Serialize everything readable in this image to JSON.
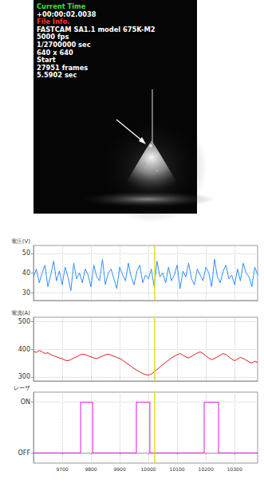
{
  "photo": {
    "overlay": [
      {
        "text": "Current Time",
        "color": "#3fe03f"
      },
      {
        "text": "+00:00:02.0038",
        "color": "#ffffff"
      },
      {
        "text": "File Info.",
        "color": "#ff3030"
      },
      {
        "text": "FASTCAM SA1.1 model 675K-M2",
        "color": "#ffffff"
      },
      {
        "text": "5000 fps",
        "color": "#ffffff"
      },
      {
        "text": "1/2700000 sec",
        "color": "#ffffff"
      },
      {
        "text": "640 x 640",
        "color": "#ffffff"
      },
      {
        "text": "Start",
        "color": "#ffffff"
      },
      {
        "text": "27951 frames",
        "color": "#ffffff"
      },
      {
        "text": "5.5902 sec",
        "color": "#ffffff"
      }
    ]
  },
  "chart_data": [
    {
      "type": "line",
      "y_label": "電圧(V)",
      "xlim": [
        9600,
        10380
      ],
      "xticks": [
        9700,
        9800,
        9900,
        10000,
        10100,
        10200,
        10300
      ],
      "ylim": [
        26,
        54
      ],
      "yticks": [
        30,
        40,
        50
      ],
      "grid": true,
      "cursor_x": 10020,
      "x": [
        9600,
        9610,
        9620,
        9630,
        9640,
        9650,
        9660,
        9670,
        9680,
        9690,
        9700,
        9710,
        9720,
        9730,
        9740,
        9750,
        9760,
        9770,
        9780,
        9790,
        9800,
        9810,
        9820,
        9830,
        9840,
        9850,
        9860,
        9870,
        9880,
        9890,
        9900,
        9910,
        9920,
        9930,
        9940,
        9950,
        9960,
        9970,
        9980,
        9990,
        10000,
        10010,
        10020,
        10030,
        10040,
        10050,
        10060,
        10070,
        10080,
        10090,
        10100,
        10110,
        10120,
        10130,
        10140,
        10150,
        10160,
        10170,
        10180,
        10190,
        10200,
        10210,
        10220,
        10230,
        10240,
        10250,
        10260,
        10270,
        10280,
        10290,
        10300,
        10310,
        10320,
        10330,
        10340,
        10350,
        10360,
        10370,
        10380
      ],
      "series": [
        {
          "color": "#2f8fff",
          "values": [
            38,
            42,
            35,
            40,
            44,
            33,
            39,
            46,
            36,
            41,
            34,
            43,
            38,
            31,
            45,
            37,
            40,
            35,
            42,
            39,
            33,
            44,
            38,
            36,
            47,
            34,
            40,
            42,
            37,
            32,
            43,
            39,
            36,
            45,
            38,
            34,
            41,
            44,
            35,
            39,
            37,
            42,
            33,
            46,
            38,
            40,
            35,
            43,
            36,
            39,
            44,
            32,
            41,
            38,
            45,
            37,
            34,
            42,
            39,
            36,
            43,
            40,
            33,
            47,
            38,
            35,
            41,
            44,
            37,
            39,
            34,
            42,
            36,
            45,
            40,
            38,
            33,
            43,
            39
          ]
        }
      ]
    },
    {
      "type": "line",
      "y_label": "電流(A)",
      "xlim": [
        9600,
        10380
      ],
      "xticks": [
        9700,
        9800,
        9900,
        10000,
        10100,
        10200,
        10300
      ],
      "ylim": [
        285,
        515
      ],
      "yticks": [
        300,
        400,
        500
      ],
      "grid": true,
      "cursor_x": 10020,
      "x": [
        9600,
        9610,
        9620,
        9630,
        9640,
        9650,
        9660,
        9670,
        9680,
        9690,
        9700,
        9710,
        9720,
        9730,
        9740,
        9750,
        9760,
        9770,
        9780,
        9790,
        9800,
        9810,
        9820,
        9830,
        9840,
        9850,
        9860,
        9870,
        9880,
        9890,
        9900,
        9910,
        9920,
        9930,
        9940,
        9950,
        9960,
        9970,
        9980,
        9990,
        10000,
        10010,
        10020,
        10030,
        10040,
        10050,
        10060,
        10070,
        10080,
        10090,
        10100,
        10110,
        10120,
        10130,
        10140,
        10150,
        10160,
        10170,
        10180,
        10190,
        10200,
        10210,
        10220,
        10230,
        10240,
        10250,
        10260,
        10270,
        10280,
        10290,
        10300,
        10310,
        10320,
        10330,
        10340,
        10350,
        10360,
        10370,
        10380
      ],
      "series": [
        {
          "color": "#e01818",
          "values": [
            392,
            388,
            395,
            390,
            384,
            387,
            380,
            376,
            372,
            368,
            365,
            360,
            358,
            362,
            368,
            372,
            378,
            382,
            380,
            376,
            372,
            368,
            366,
            370,
            375,
            379,
            382,
            378,
            374,
            370,
            366,
            360,
            352,
            345,
            338,
            330,
            324,
            318,
            312,
            308,
            306,
            310,
            318,
            326,
            335,
            344,
            352,
            360,
            368,
            374,
            380,
            384,
            378,
            372,
            368,
            374,
            380,
            386,
            390,
            384,
            376,
            368,
            362,
            366,
            372,
            378,
            384,
            380,
            372,
            364,
            358,
            364,
            370,
            366,
            360,
            354,
            350,
            356,
            352
          ]
        }
      ]
    },
    {
      "type": "line",
      "y_label": "レーザ",
      "xlim": [
        9600,
        10380
      ],
      "xticks": [
        9700,
        9800,
        9900,
        10000,
        10100,
        10200,
        10300
      ],
      "ylim": [
        -0.2,
        1.2
      ],
      "yticks": [
        {
          "value": 0,
          "label": "OFF"
        },
        {
          "value": 1,
          "label": "ON"
        }
      ],
      "grid": true,
      "cursor_x": 10020,
      "x": [
        9600,
        9764,
        9764,
        9806,
        9806,
        9958,
        9958,
        10005,
        10005,
        10194,
        10194,
        10244,
        10244,
        10380
      ],
      "series": [
        {
          "color": "#e010e0",
          "values": [
            0,
            0,
            1,
            1,
            0,
            0,
            1,
            1,
            0,
            0,
            1,
            1,
            0,
            0
          ]
        }
      ]
    }
  ]
}
